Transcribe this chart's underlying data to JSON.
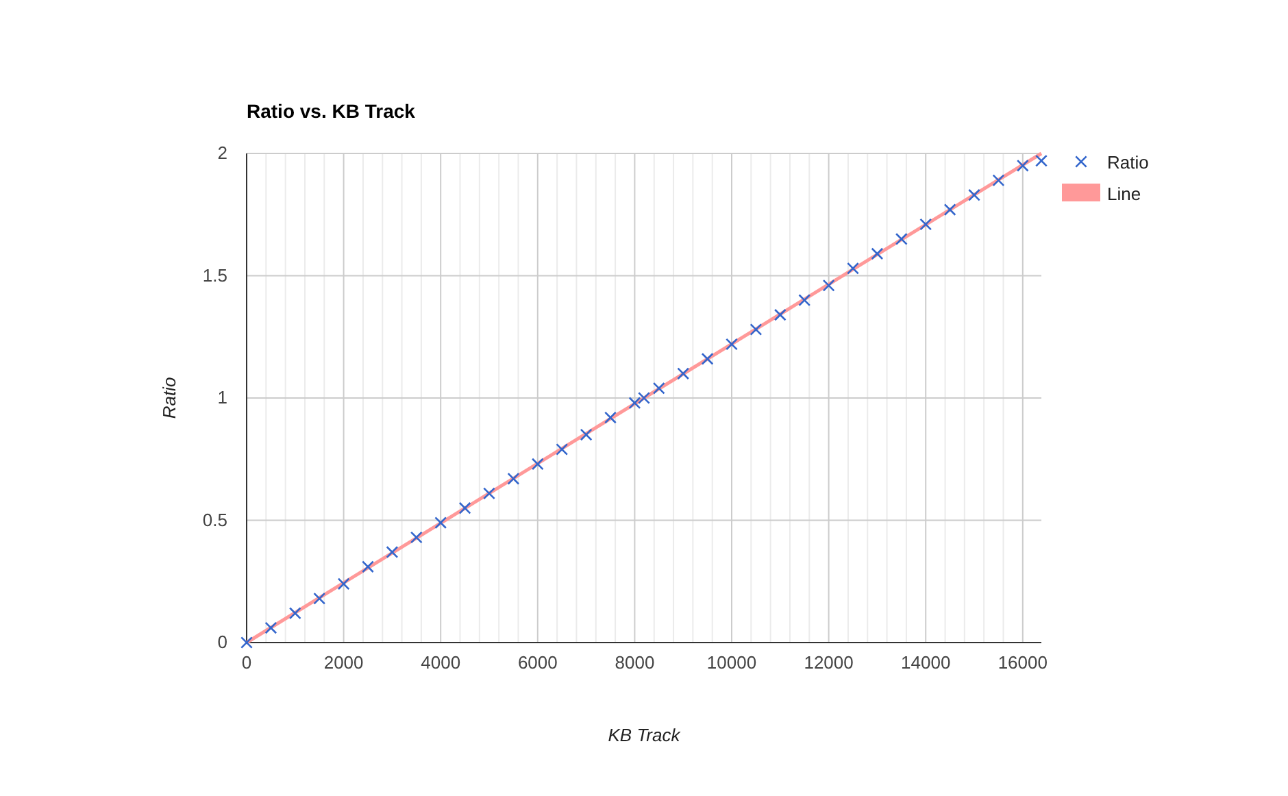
{
  "chart_data": {
    "type": "scatter",
    "title": "Ratio vs. KB Track",
    "xlabel": "KB Track",
    "ylabel": "Ratio",
    "xlim": [
      0,
      16384
    ],
    "ylim": [
      0,
      2
    ],
    "xticks": [
      0,
      {
        "value": 400,
        "label": null
      },
      {
        "value": 800,
        "label": null
      },
      {
        "value": 1200,
        "label": null
      },
      {
        "value": 1600,
        "label": null
      },
      2000,
      {
        "value": 2400,
        "label": null
      },
      {
        "value": 2800,
        "label": null
      },
      {
        "value": 3200,
        "label": null
      },
      {
        "value": 3600,
        "label": null
      },
      4000,
      {
        "value": 4400,
        "label": null
      },
      {
        "value": 4800,
        "label": null
      },
      {
        "value": 5200,
        "label": null
      },
      {
        "value": 5600,
        "label": null
      },
      6000,
      {
        "value": 6400,
        "label": null
      },
      {
        "value": 6800,
        "label": null
      },
      {
        "value": 7200,
        "label": null
      },
      {
        "value": 7600,
        "label": null
      },
      8000,
      {
        "value": 8400,
        "label": null
      },
      {
        "value": 8800,
        "label": null
      },
      {
        "value": 9200,
        "label": null
      },
      {
        "value": 9600,
        "label": null
      },
      10000,
      {
        "value": 10400,
        "label": null
      },
      {
        "value": 10800,
        "label": null
      },
      {
        "value": 11200,
        "label": null
      },
      {
        "value": 11600,
        "label": null
      },
      12000,
      {
        "value": 12400,
        "label": null
      },
      {
        "value": 12800,
        "label": null
      },
      {
        "value": 13200,
        "label": null
      },
      {
        "value": 13600,
        "label": null
      },
      14000,
      {
        "value": 14400,
        "label": null
      },
      {
        "value": 14800,
        "label": null
      },
      {
        "value": 15200,
        "label": null
      },
      {
        "value": 15600,
        "label": null
      },
      16000
    ],
    "yticks": [
      0,
      0.5,
      1,
      1.5,
      2
    ],
    "grid": true,
    "legend": "top right",
    "series": [
      {
        "name": "Ratio",
        "marker": "cross",
        "color": "#3366cc",
        "x": [
          0,
          500,
          1000,
          1500,
          2000,
          2500,
          3000,
          3500,
          4000,
          4500,
          5000,
          5500,
          6000,
          6500,
          7000,
          7500,
          8000,
          8192,
          8500,
          9000,
          9500,
          10000,
          10500,
          11000,
          11500,
          12000,
          12500,
          13000,
          13500,
          14000,
          14500,
          15000,
          15500,
          16000,
          16384
        ],
        "values": [
          0,
          0.06,
          0.12,
          0.18,
          0.24,
          0.31,
          0.37,
          0.43,
          0.49,
          0.55,
          0.61,
          0.67,
          0.73,
          0.79,
          0.85,
          0.92,
          0.98,
          1,
          1.04,
          1.1,
          1.16,
          1.22,
          1.28,
          1.34,
          1.4,
          1.46,
          1.53,
          1.59,
          1.65,
          1.71,
          1.77,
          1.83,
          1.89,
          1.95,
          1.97
        ]
      },
      {
        "name": "Line",
        "type": "line",
        "marker": "none",
        "color": "#ff9999",
        "x": [
          0,
          16384
        ],
        "values": [
          0,
          2
        ]
      }
    ]
  }
}
